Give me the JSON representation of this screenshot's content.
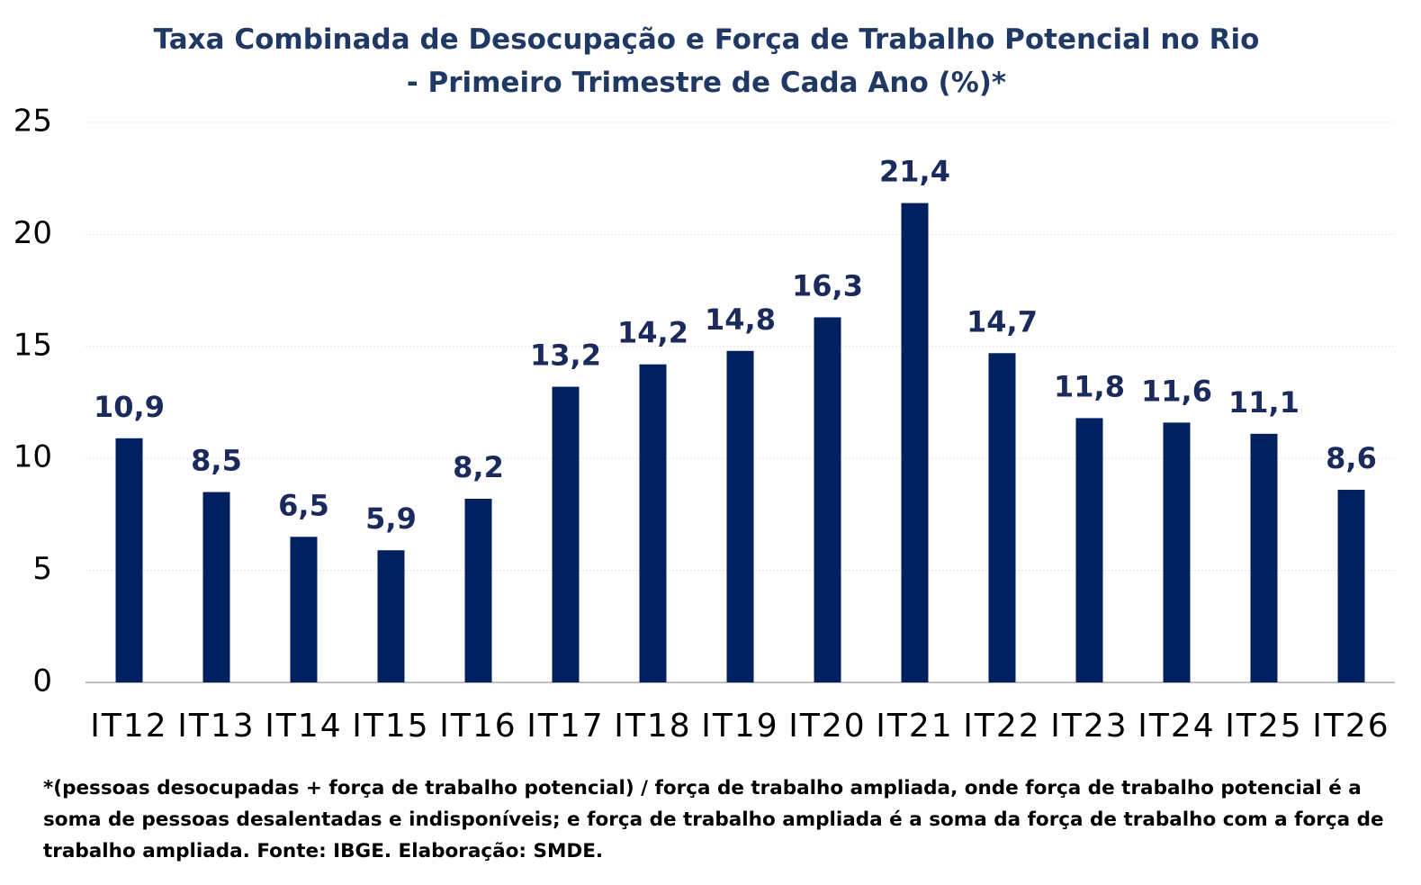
{
  "chart_data": {
    "type": "bar",
    "title": "Taxa Combinada de Desocupação e Força de Trabalho Potencial no Rio - Primeiro Trimestre de Cada Ano (%)*",
    "footnote": "*(pessoas desocupadas + força de trabalho potencial) / força de trabalho ampliada, onde força de trabalho potencial é a soma de pessoas desalentadas e indisponíveis; e força de trabalho ampliada é a soma da força de trabalho com a força de trabalho ampliada. Fonte: IBGE. Elaboração: SMDE.",
    "categories": [
      "IT12",
      "IT13",
      "IT14",
      "IT15",
      "IT16",
      "IT17",
      "IT18",
      "IT19",
      "IT20",
      "IT21",
      "IT22",
      "IT23",
      "IT24",
      "IT25",
      "IT26"
    ],
    "values": [
      10.9,
      8.5,
      6.5,
      5.9,
      8.2,
      13.2,
      14.2,
      14.8,
      16.3,
      21.4,
      14.7,
      11.8,
      11.6,
      11.1,
      8.6
    ],
    "value_labels": [
      "10,9",
      "8,5",
      "6,5",
      "5,9",
      "8,2",
      "13,2",
      "14,2",
      "14,8",
      "16,3",
      "21,4",
      "14,7",
      "11,8",
      "11,6",
      "11,1",
      "8,6"
    ],
    "color": "#002060",
    "ylim": [
      0,
      25
    ],
    "yticks": [
      0,
      5,
      10,
      15,
      20,
      25
    ],
    "grid": true
  }
}
